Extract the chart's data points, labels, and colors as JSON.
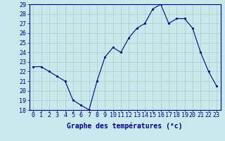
{
  "hours": [
    0,
    1,
    2,
    3,
    4,
    5,
    6,
    7,
    8,
    9,
    10,
    11,
    12,
    13,
    14,
    15,
    16,
    17,
    18,
    19,
    20,
    21,
    22,
    23
  ],
  "temperatures": [
    22.5,
    22.5,
    22.0,
    21.5,
    21.0,
    19.0,
    18.5,
    18.0,
    21.0,
    23.5,
    24.5,
    24.0,
    25.5,
    26.5,
    27.0,
    28.5,
    29.0,
    27.0,
    27.5,
    27.5,
    26.5,
    24.0,
    22.0,
    20.5
  ],
  "xlabel": "Graphe des températures (°c)",
  "ylim": [
    18,
    29
  ],
  "yticks": [
    18,
    19,
    20,
    21,
    22,
    23,
    24,
    25,
    26,
    27,
    28,
    29
  ],
  "xticks": [
    0,
    1,
    2,
    3,
    4,
    5,
    6,
    7,
    8,
    9,
    10,
    11,
    12,
    13,
    14,
    15,
    16,
    17,
    18,
    19,
    20,
    21,
    22,
    23
  ],
  "line_color": "#00008B",
  "marker_color": "#00008B",
  "bg_color": "#C8E8EC",
  "grid_color": "#AACCCC",
  "xlabel_color": "#00008B",
  "tick_color": "#00008B",
  "xlabel_fontsize": 7,
  "tick_fontsize": 6
}
